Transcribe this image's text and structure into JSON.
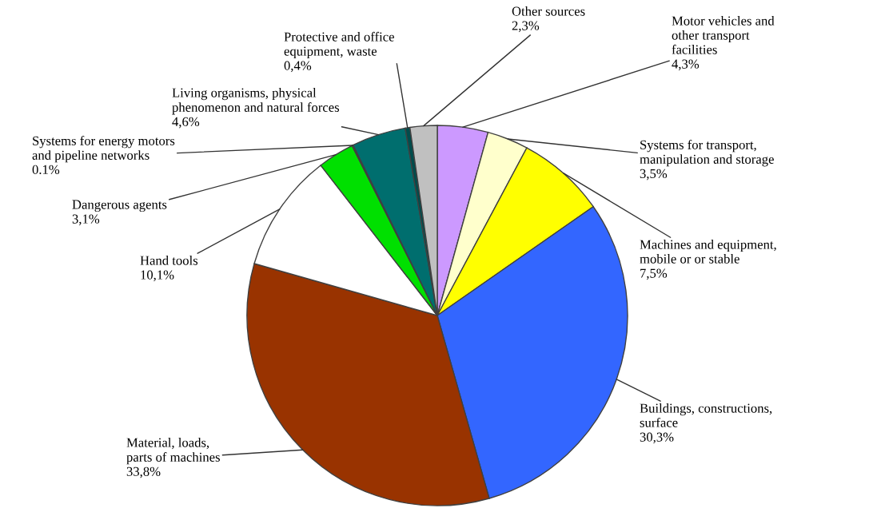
{
  "chart_data": {
    "type": "pie",
    "categories": [
      "Motor vehicles and\nother transport\nfacilities",
      "Systems for transport,\nmanipulation and storage",
      "Machines and equipment,\nmobile or or stable",
      "Buildings, constructions,\nsurface",
      "Material, loads,\nparts of machines",
      "Hand tools",
      "Dangerous agents",
      "Systems for energy motors\nand pipeline networks",
      "Living organisms, physical\nphenomenon and natural forces",
      "Protective and office\nequipment, waste",
      "Other sources"
    ],
    "values": [
      4.3,
      3.5,
      7.5,
      30.3,
      33.8,
      10.1,
      3.1,
      0.1,
      4.6,
      0.4,
      2.3
    ],
    "colors": [
      "#cc99ff",
      "#ffffcc",
      "#ffff00",
      "#3366ff",
      "#993300",
      "#ffffff",
      "#00e000",
      "#99cc99",
      "#006e6e",
      "#004c4c",
      "#c0c0c0"
    ],
    "value_labels": [
      "4,3%",
      "3,5%",
      "7,5%",
      "30,3%",
      "33,8%",
      "10,1%",
      "3,1%",
      "0.1%",
      "4,6%",
      "0,4%",
      "2,3%"
    ]
  }
}
